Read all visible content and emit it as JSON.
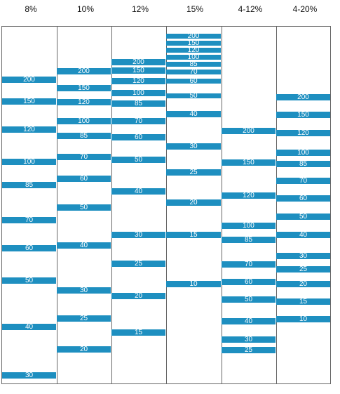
{
  "band_color": "#1e8fc0",
  "lanes": [
    {
      "header": "8%",
      "bands": [
        {
          "label": "200",
          "mw": 200
        },
        {
          "label": "150",
          "mw": 150
        },
        {
          "label": "120",
          "mw": 120
        },
        {
          "label": "100",
          "mw": 100
        },
        {
          "label": "85",
          "mw": 85
        },
        {
          "label": "70",
          "mw": 70
        },
        {
          "label": "60",
          "mw": 60
        },
        {
          "label": "50",
          "mw": 50
        },
        {
          "label": "40",
          "mw": 40
        },
        {
          "label": "30",
          "mw": 30
        }
      ]
    },
    {
      "header": "10%",
      "bands": [
        {
          "label": "200",
          "mw": 200
        },
        {
          "label": "150",
          "mw": 150
        },
        {
          "label": "120",
          "mw": 120
        },
        {
          "label": "100",
          "mw": 100
        },
        {
          "label": "85",
          "mw": 85
        },
        {
          "label": "70",
          "mw": 70
        },
        {
          "label": "60",
          "mw": 60
        },
        {
          "label": "50",
          "mw": 50
        },
        {
          "label": "40",
          "mw": 40
        },
        {
          "label": "30",
          "mw": 30
        },
        {
          "label": "25",
          "mw": 25
        },
        {
          "label": "20",
          "mw": 20
        }
      ]
    },
    {
      "header": "12%",
      "bands": [
        {
          "label": "200",
          "mw": 200
        },
        {
          "label": "150",
          "mw": 150
        },
        {
          "label": "120",
          "mw": 120
        },
        {
          "label": "100",
          "mw": 100
        },
        {
          "label": "85",
          "mw": 85
        },
        {
          "label": "70",
          "mw": 70
        },
        {
          "label": "60",
          "mw": 60
        },
        {
          "label": "50",
          "mw": 50
        },
        {
          "label": "40",
          "mw": 40
        },
        {
          "label": "30",
          "mw": 30
        },
        {
          "label": "25",
          "mw": 25
        },
        {
          "label": "20",
          "mw": 20
        },
        {
          "label": "15",
          "mw": 15
        }
      ]
    },
    {
      "header": "15%",
      "bands": [
        {
          "label": "200",
          "mw": 200
        },
        {
          "label": "150",
          "mw": 150
        },
        {
          "label": "120",
          "mw": 120
        },
        {
          "label": "100",
          "mw": 100
        },
        {
          "label": "85",
          "mw": 85
        },
        {
          "label": "70",
          "mw": 70
        },
        {
          "label": "60",
          "mw": 60
        },
        {
          "label": "50",
          "mw": 50
        },
        {
          "label": "40",
          "mw": 40
        },
        {
          "label": "30",
          "mw": 30
        },
        {
          "label": "25",
          "mw": 25
        },
        {
          "label": "20",
          "mw": 20
        },
        {
          "label": "15",
          "mw": 15
        },
        {
          "label": "10",
          "mw": 10
        }
      ]
    },
    {
      "header": "4-12%",
      "bands": [
        {
          "label": "200",
          "mw": 200
        },
        {
          "label": "150",
          "mw": 150
        },
        {
          "label": "120",
          "mw": 120
        },
        {
          "label": "100",
          "mw": 100
        },
        {
          "label": "85",
          "mw": 85
        },
        {
          "label": "70",
          "mw": 70
        },
        {
          "label": "60",
          "mw": 60
        },
        {
          "label": "50",
          "mw": 50
        },
        {
          "label": "40",
          "mw": 40
        },
        {
          "label": "30",
          "mw": 30
        },
        {
          "label": "25",
          "mw": 25
        }
      ]
    },
    {
      "header": "4-20%",
      "bands": [
        {
          "label": "200",
          "mw": 200
        },
        {
          "label": "150",
          "mw": 150
        },
        {
          "label": "120",
          "mw": 120
        },
        {
          "label": "100",
          "mw": 100
        },
        {
          "label": "85",
          "mw": 85
        },
        {
          "label": "70",
          "mw": 70
        },
        {
          "label": "60",
          "mw": 60
        },
        {
          "label": "50",
          "mw": 50
        },
        {
          "label": "40",
          "mw": 40
        },
        {
          "label": "30",
          "mw": 30
        },
        {
          "label": "25",
          "mw": 25
        },
        {
          "label": "20",
          "mw": 20
        },
        {
          "label": "15",
          "mw": 15
        },
        {
          "label": "10",
          "mw": 10
        }
      ]
    }
  ]
}
